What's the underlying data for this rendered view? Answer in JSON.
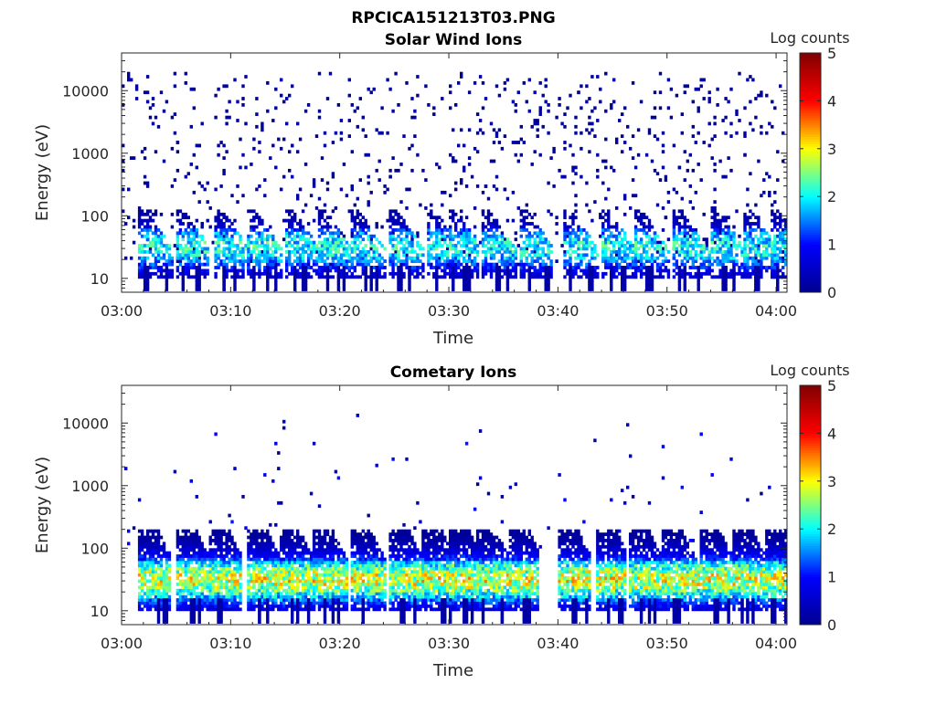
{
  "page_title": "RPCICA151213T03.PNG",
  "chart_data": [
    {
      "type": "heatmap",
      "title": "Solar Wind Ions",
      "xlabel": "Time",
      "ylabel": "Energy (eV)",
      "x_ticks": [
        "03:00",
        "03:10",
        "03:20",
        "03:30",
        "03:40",
        "03:50",
        "04:00"
      ],
      "x_range": [
        "03:00",
        "04:01"
      ],
      "y_scale": "log",
      "y_ticks": [
        10,
        100,
        1000,
        10000
      ],
      "y_tick_labels": [
        "10",
        "100",
        "1000",
        "10000"
      ],
      "ylim": [
        6,
        40000
      ],
      "colorbar": {
        "label": "Log counts",
        "range": [
          0,
          5
        ],
        "ticks": [
          "0",
          "1",
          "2",
          "3",
          "4",
          "5"
        ],
        "colormap": "jet"
      },
      "colormap_colors": [
        "#00008f",
        "#0000ff",
        "#00ffff",
        "#ffff00",
        "#ff0000",
        "#800000"
      ],
      "pulse_times_min": [
        2,
        5.5,
        9,
        12,
        15.5,
        18.5,
        21.5,
        25,
        28.5,
        30.5,
        33.5,
        37,
        41,
        44.5,
        47.5,
        51,
        54.5,
        57.5,
        60
      ],
      "peak_log_counts": 2.6,
      "peak_energy_eV": 30,
      "background": "sparse single counts (log counts 0) from 10 eV to 20000 eV"
    },
    {
      "type": "heatmap",
      "title": "Cometary Ions",
      "xlabel": "Time",
      "ylabel": "Energy (eV)",
      "x_ticks": [
        "03:00",
        "03:10",
        "03:20",
        "03:30",
        "03:40",
        "03:50",
        "04:00"
      ],
      "x_range": [
        "03:00",
        "04:01"
      ],
      "y_scale": "log",
      "y_ticks": [
        10,
        100,
        1000,
        10000
      ],
      "y_tick_labels": [
        "10",
        "100",
        "1000",
        "10000"
      ],
      "ylim": [
        6,
        40000
      ],
      "colorbar": {
        "label": "Log counts",
        "range": [
          0,
          5
        ],
        "ticks": [
          "0",
          "1",
          "2",
          "3",
          "4",
          "5"
        ],
        "colormap": "jet"
      },
      "colormap_colors": [
        "#00008f",
        "#0000ff",
        "#00ffff",
        "#ffff00",
        "#ff0000",
        "#800000"
      ],
      "pulse_times_min": [
        2,
        5.5,
        8.5,
        12,
        15,
        18,
        21.5,
        25,
        28,
        30.5,
        33,
        36,
        40.5,
        44,
        47,
        50,
        53.5,
        56.5,
        59.5
      ],
      "peak_log_counts": 3.6,
      "peak_energy_eV": 30,
      "background": "dispersed high-energy counts (log counts 0-1) from 300 eV to 15000 eV"
    }
  ]
}
